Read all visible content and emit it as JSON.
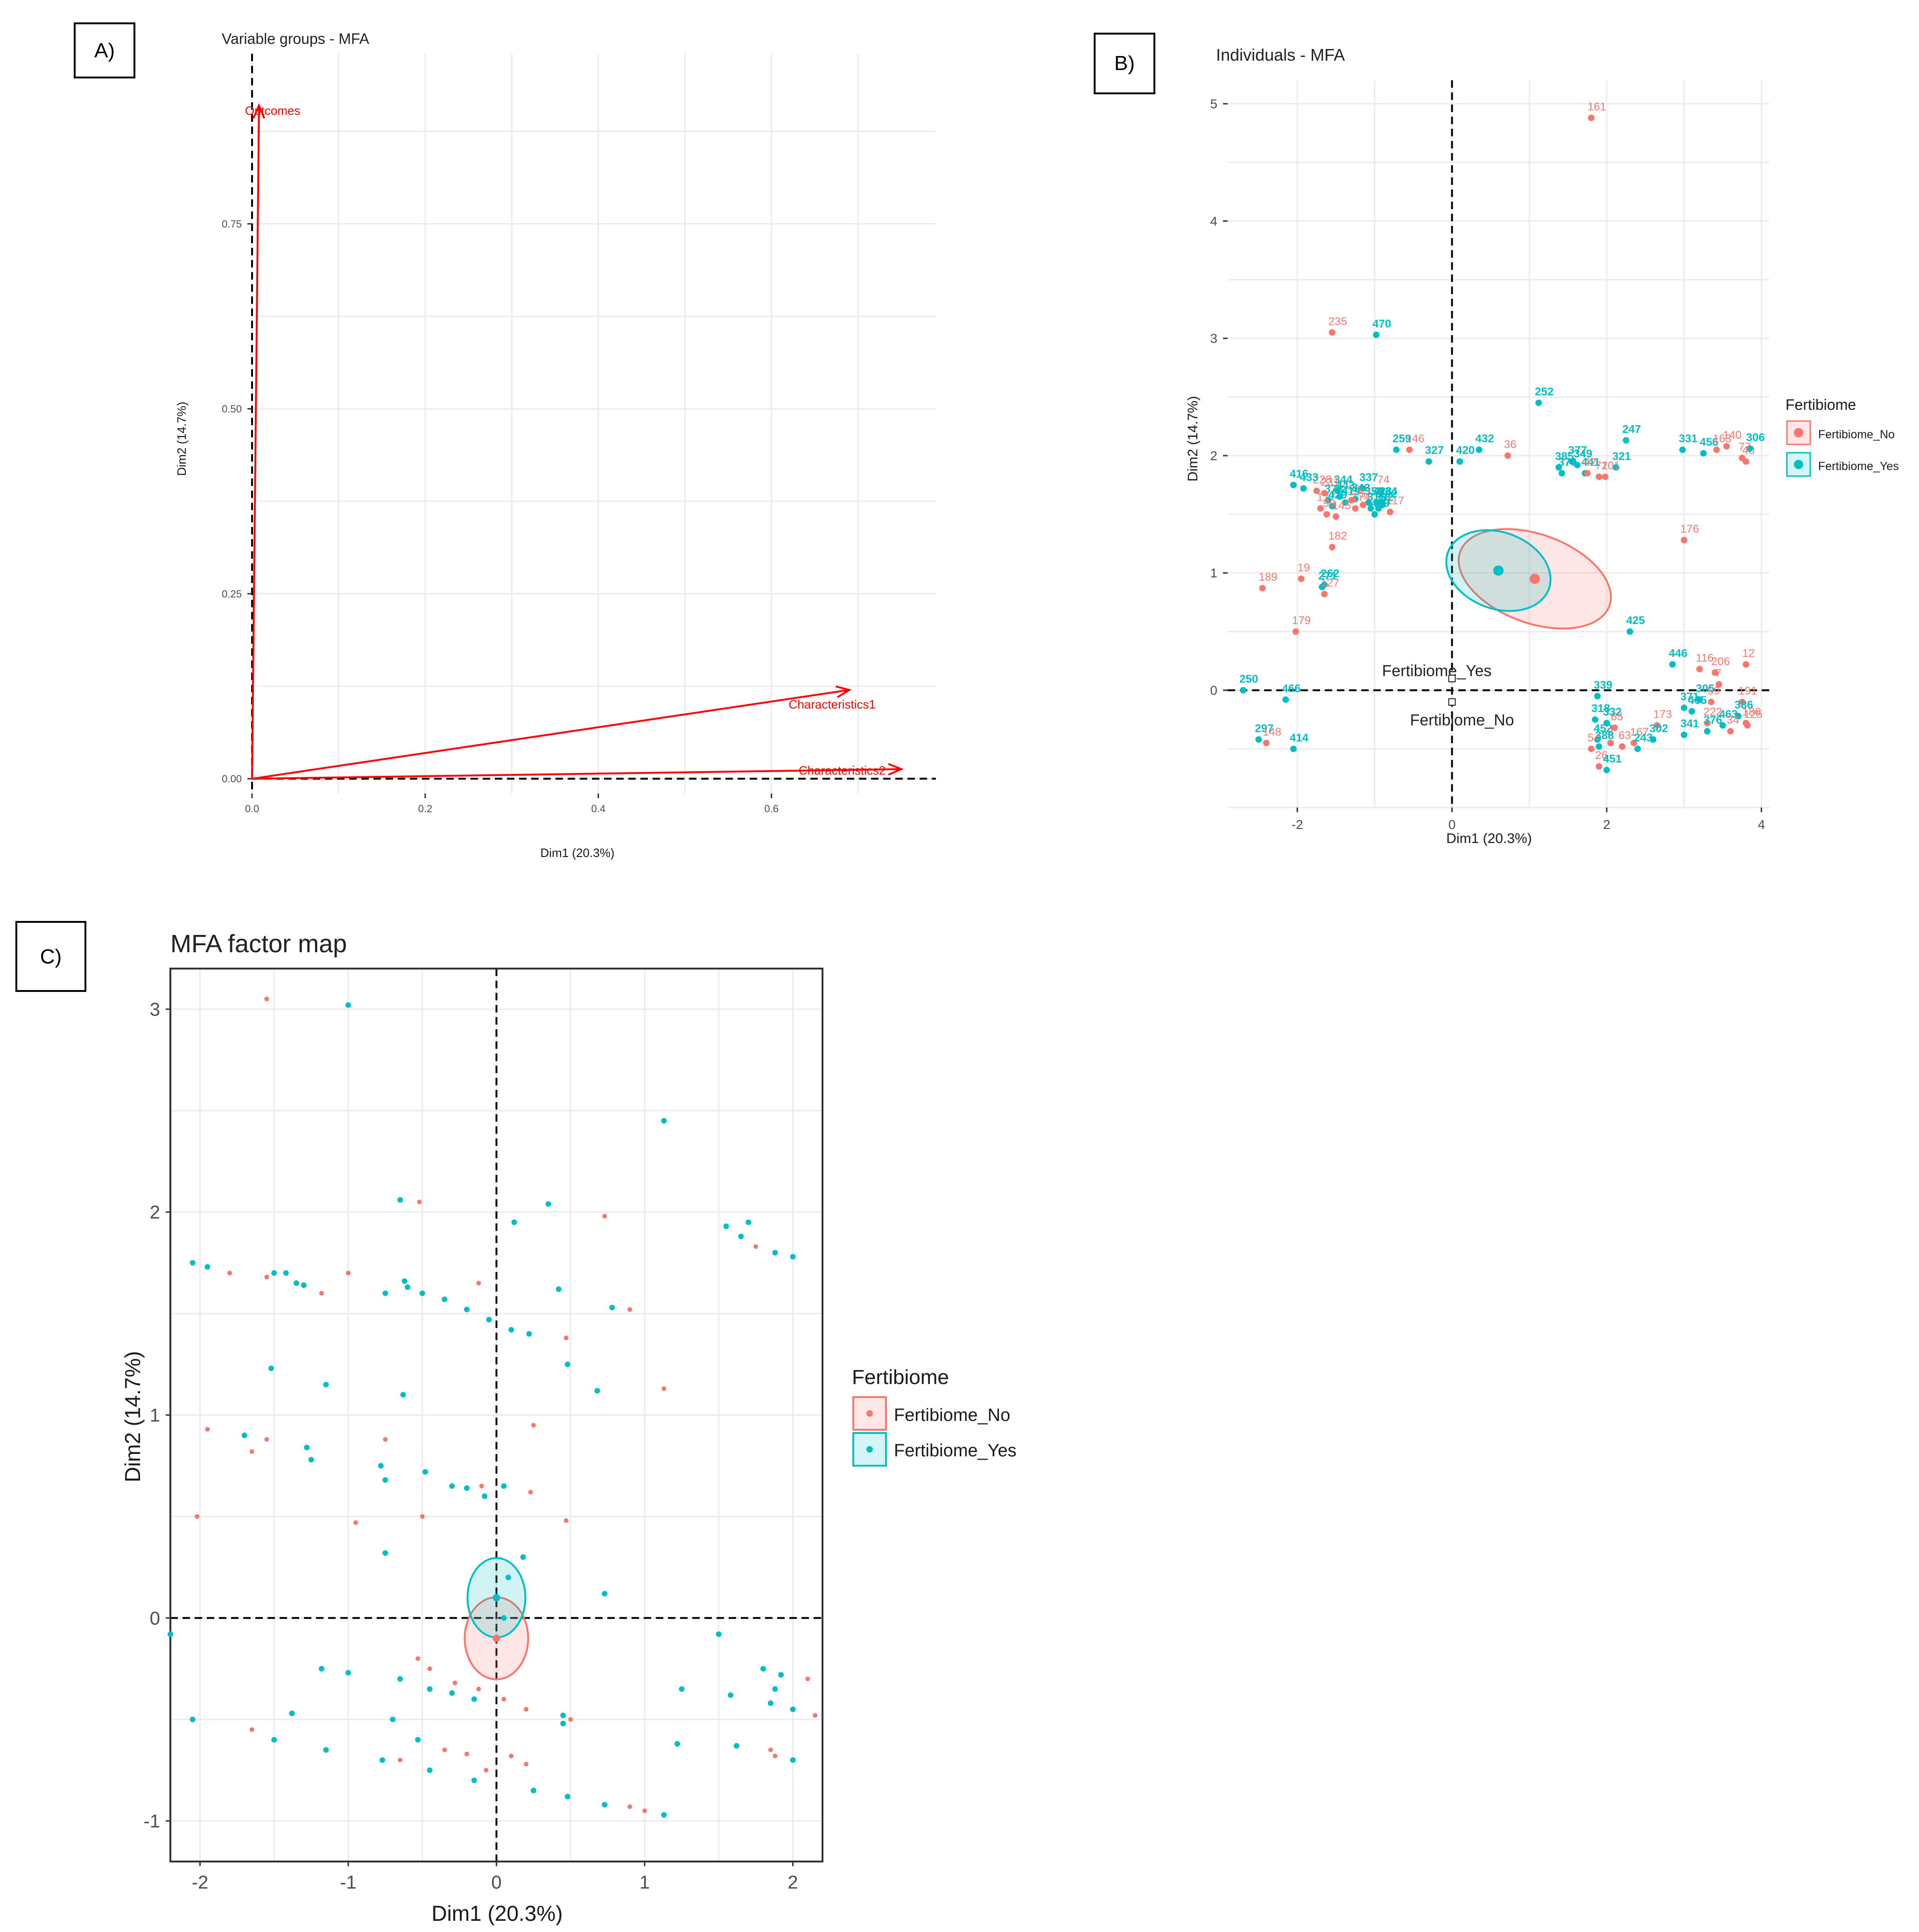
{
  "panels": {
    "a": {
      "label": "A)"
    },
    "b": {
      "label": "B)"
    },
    "c": {
      "label": "C)"
    }
  },
  "colors": {
    "no": "#f8766d",
    "yes": "#00bfc4",
    "arrow": "#ff0000"
  },
  "chart_data": [
    {
      "id": "A",
      "type": "scatter",
      "title": "Variable groups - MFA",
      "xlabel": "Dim1 (20.3%)",
      "ylabel": "Dim2 (14.7%)",
      "xlim": [
        0,
        0.79
      ],
      "ylim": [
        -0.02,
        0.98
      ],
      "xticks": [
        "0.0",
        "0.2",
        "0.4",
        "0.6"
      ],
      "yticks": [
        "0.00",
        "0.25",
        "0.50",
        "0.75"
      ],
      "arrows": [
        {
          "name": "Outcomes",
          "x": 0.008,
          "y": 0.91
        },
        {
          "name": "Characteristics1",
          "x": 0.69,
          "y": 0.12
        },
        {
          "name": "Characteristics2",
          "x": 0.75,
          "y": 0.013
        }
      ]
    },
    {
      "id": "B",
      "type": "scatter",
      "title": "Individuals - MFA",
      "xlabel": "Dim1 (20.3%)",
      "ylabel": "Dim2 (14.7%)",
      "xlim": [
        -2.9,
        4.1
      ],
      "ylim": [
        -1.0,
        5.2
      ],
      "xticks": [
        "-2",
        "0",
        "2",
        "4"
      ],
      "yticks": [
        "0",
        "1",
        "2",
        "3",
        "4",
        "5"
      ],
      "legend": {
        "title": "Fertibiome",
        "entries": [
          "Fertibiome_No",
          "Fertibiome_Yes"
        ]
      },
      "centroid_labels": [
        "Fertibiome_Yes",
        "Fertibiome_No"
      ],
      "centroids": [
        {
          "group": "Yes",
          "x": 0.6,
          "y": 1.02
        },
        {
          "group": "No",
          "x": 1.07,
          "y": 0.95
        }
      ],
      "points": [
        {
          "id": "161",
          "g": "No",
          "x": 1.8,
          "y": 4.88
        },
        {
          "id": "235",
          "g": "No",
          "x": -1.55,
          "y": 3.05
        },
        {
          "id": "470",
          "g": "Yes",
          "x": -0.98,
          "y": 3.03
        },
        {
          "id": "259",
          "g": "Yes",
          "x": -0.72,
          "y": 2.05
        },
        {
          "id": "344",
          "g": "Yes",
          "x": -1.48,
          "y": 1.7
        },
        {
          "id": "337",
          "g": "Yes",
          "x": -1.15,
          "y": 1.72
        },
        {
          "id": "74",
          "g": "No",
          "x": -0.92,
          "y": 1.7
        },
        {
          "id": "146",
          "g": "No",
          "x": -0.55,
          "y": 2.05
        },
        {
          "id": "228",
          "g": "No",
          "x": -1.75,
          "y": 1.7
        },
        {
          "id": "443",
          "g": "Yes",
          "x": -1.45,
          "y": 1.65
        },
        {
          "id": "343",
          "g": "Yes",
          "x": -1.25,
          "y": 1.63
        },
        {
          "id": "378",
          "g": "Yes",
          "x": -1.6,
          "y": 1.62
        },
        {
          "id": "10",
          "g": "No",
          "x": -1.3,
          "y": 1.62
        },
        {
          "id": "350",
          "g": "Yes",
          "x": -1.08,
          "y": 1.6
        },
        {
          "id": "324",
          "g": "Yes",
          "x": -0.9,
          "y": 1.6
        },
        {
          "id": "327",
          "g": "Yes",
          "x": -0.3,
          "y": 1.95
        },
        {
          "id": "432",
          "g": "Yes",
          "x": 0.35,
          "y": 2.05
        },
        {
          "id": "252",
          "g": "Yes",
          "x": 1.12,
          "y": 2.45
        },
        {
          "id": "420",
          "g": "Yes",
          "x": 0.1,
          "y": 1.95
        },
        {
          "id": "36",
          "g": "No",
          "x": 0.72,
          "y": 2.0
        },
        {
          "id": "416",
          "g": "Yes",
          "x": -2.05,
          "y": 1.75
        },
        {
          "id": "433",
          "g": "Yes",
          "x": -1.92,
          "y": 1.72
        },
        {
          "id": "231",
          "g": "No",
          "x": -1.65,
          "y": 1.68
        },
        {
          "id": "419",
          "g": "Yes",
          "x": -1.38,
          "y": 1.6
        },
        {
          "id": "177",
          "g": "No",
          "x": -1.7,
          "y": 1.55
        },
        {
          "id": "429",
          "g": "Yes",
          "x": -1.55,
          "y": 1.57
        },
        {
          "id": "51",
          "g": "No",
          "x": -1.15,
          "y": 1.58
        },
        {
          "id": "423",
          "g": "Yes",
          "x": -0.97,
          "y": 1.6
        },
        {
          "id": "292",
          "g": "Yes",
          "x": -0.9,
          "y": 1.58
        },
        {
          "id": "382",
          "g": "Yes",
          "x": -0.95,
          "y": 1.55
        },
        {
          "id": "174",
          "g": "No",
          "x": -1.25,
          "y": 1.55
        },
        {
          "id": "99",
          "g": "No",
          "x": -1.62,
          "y": 1.5
        },
        {
          "id": "145",
          "g": "No",
          "x": -1.5,
          "y": 1.48
        },
        {
          "id": "315",
          "g": "Yes",
          "x": -1.05,
          "y": 1.55
        },
        {
          "id": "117",
          "g": "No",
          "x": -0.8,
          "y": 1.52
        },
        {
          "id": "409",
          "g": "Yes",
          "x": -1.0,
          "y": 1.5
        },
        {
          "id": "182",
          "g": "No",
          "x": -1.55,
          "y": 1.22
        },
        {
          "id": "19",
          "g": "No",
          "x": -1.95,
          "y": 0.95
        },
        {
          "id": "262",
          "g": "Yes",
          "x": -1.65,
          "y": 0.9
        },
        {
          "id": "271",
          "g": "Yes",
          "x": -1.68,
          "y": 0.88
        },
        {
          "id": "127",
          "g": "No",
          "x": -1.65,
          "y": 0.82
        },
        {
          "id": "189",
          "g": "No",
          "x": -2.45,
          "y": 0.87
        },
        {
          "id": "179",
          "g": "No",
          "x": -2.02,
          "y": 0.5
        },
        {
          "id": "370",
          "g": "Yes",
          "x": 1.42,
          "y": 1.85
        },
        {
          "id": "247",
          "g": "Yes",
          "x": 2.25,
          "y": 2.13
        },
        {
          "id": "321",
          "g": "Yes",
          "x": 2.12,
          "y": 1.9
        },
        {
          "id": "441",
          "g": "Yes",
          "x": 1.72,
          "y": 1.85
        },
        {
          "id": "385",
          "g": "Yes",
          "x": 1.38,
          "y": 1.9
        },
        {
          "id": "201",
          "g": "No",
          "x": 1.98,
          "y": 1.82
        },
        {
          "id": "377",
          "g": "Yes",
          "x": 1.55,
          "y": 1.95
        },
        {
          "id": "349",
          "g": "Yes",
          "x": 1.62,
          "y": 1.92
        },
        {
          "id": "42",
          "g": "No",
          "x": 1.75,
          "y": 1.85
        },
        {
          "id": "71",
          "g": "No",
          "x": 1.9,
          "y": 1.82
        },
        {
          "id": "331",
          "g": "Yes",
          "x": 2.98,
          "y": 2.05
        },
        {
          "id": "456",
          "g": "Yes",
          "x": 3.25,
          "y": 2.02
        },
        {
          "id": "140",
          "g": "No",
          "x": 3.55,
          "y": 2.08
        },
        {
          "id": "163",
          "g": "No",
          "x": 3.42,
          "y": 2.05
        },
        {
          "id": "40",
          "g": "No",
          "x": 3.8,
          "y": 1.95
        },
        {
          "id": "306",
          "g": "Yes",
          "x": 3.85,
          "y": 2.06
        },
        {
          "id": "77",
          "g": "No",
          "x": 3.75,
          "y": 1.98
        },
        {
          "id": "176",
          "g": "No",
          "x": 3.0,
          "y": 1.28
        },
        {
          "id": "425",
          "g": "Yes",
          "x": 2.3,
          "y": 0.5
        },
        {
          "id": "446",
          "g": "Yes",
          "x": 2.85,
          "y": 0.22
        },
        {
          "id": "116",
          "g": "No",
          "x": 3.2,
          "y": 0.18
        },
        {
          "id": "206",
          "g": "No",
          "x": 3.4,
          "y": 0.15
        },
        {
          "id": "12",
          "g": "No",
          "x": 3.8,
          "y": 0.22
        },
        {
          "id": "7",
          "g": "No",
          "x": 3.45,
          "y": 0.05
        },
        {
          "id": "339",
          "g": "Yes",
          "x": 1.88,
          "y": -0.05
        },
        {
          "id": "371",
          "g": "Yes",
          "x": 3.0,
          "y": -0.15
        },
        {
          "id": "305",
          "g": "Yes",
          "x": 3.2,
          "y": -0.08
        },
        {
          "id": "59",
          "g": "No",
          "x": 3.35,
          "y": -0.1
        },
        {
          "id": "465",
          "g": "Yes",
          "x": 3.1,
          "y": -0.18
        },
        {
          "id": "191",
          "g": "No",
          "x": 3.75,
          "y": -0.1
        },
        {
          "id": "318",
          "g": "Yes",
          "x": 1.85,
          "y": -0.25
        },
        {
          "id": "332",
          "g": "Yes",
          "x": 2.0,
          "y": -0.28
        },
        {
          "id": "65",
          "g": "No",
          "x": 2.1,
          "y": -0.32
        },
        {
          "id": "173",
          "g": "No",
          "x": 2.65,
          "y": -0.3
        },
        {
          "id": "222",
          "g": "No",
          "x": 3.3,
          "y": -0.28
        },
        {
          "id": "386",
          "g": "Yes",
          "x": 3.7,
          "y": -0.22
        },
        {
          "id": "452",
          "g": "Yes",
          "x": 1.88,
          "y": -0.42
        },
        {
          "id": "3",
          "g": "No",
          "x": 2.05,
          "y": -0.45
        },
        {
          "id": "54",
          "g": "No",
          "x": 1.8,
          "y": -0.5
        },
        {
          "id": "388",
          "g": "Yes",
          "x": 1.9,
          "y": -0.48
        },
        {
          "id": "167",
          "g": "No",
          "x": 2.35,
          "y": -0.45
        },
        {
          "id": "341",
          "g": "Yes",
          "x": 3.0,
          "y": -0.38
        },
        {
          "id": "463",
          "g": "Yes",
          "x": 3.5,
          "y": -0.3
        },
        {
          "id": "186",
          "g": "No",
          "x": 3.8,
          "y": -0.28
        },
        {
          "id": "63",
          "g": "No",
          "x": 2.2,
          "y": -0.48
        },
        {
          "id": "26",
          "g": "No",
          "x": 1.9,
          "y": -0.65
        },
        {
          "id": "451",
          "g": "Yes",
          "x": 2.0,
          "y": -0.68
        },
        {
          "id": "243",
          "g": "Yes",
          "x": 2.4,
          "y": -0.5
        },
        {
          "id": "302",
          "g": "Yes",
          "x": 2.6,
          "y": -0.42
        },
        {
          "id": "376",
          "g": "Yes",
          "x": 3.3,
          "y": -0.35
        },
        {
          "id": "34",
          "g": "No",
          "x": 3.6,
          "y": -0.35
        },
        {
          "id": "125",
          "g": "No",
          "x": 3.82,
          "y": -0.3
        },
        {
          "id": "250",
          "g": "Yes",
          "x": -2.7,
          "y": 0.0
        },
        {
          "id": "466",
          "g": "Yes",
          "x": -2.15,
          "y": -0.08
        },
        {
          "id": "297",
          "g": "Yes",
          "x": -2.5,
          "y": -0.42
        },
        {
          "id": "148",
          "g": "No",
          "x": -2.4,
          "y": -0.45
        },
        {
          "id": "414",
          "g": "Yes",
          "x": -2.05,
          "y": -0.5
        }
      ]
    },
    {
      "id": "C",
      "type": "scatter",
      "title": "MFA factor map",
      "xlabel": "Dim1 (20.3%)",
      "ylabel": "Dim2 (14.7%)",
      "xlim": [
        -2.2,
        2.2
      ],
      "ylim": [
        -1.2,
        3.2
      ],
      "xticks": [
        "-2",
        "-1",
        "0",
        "1",
        "2"
      ],
      "yticks": [
        "-1",
        "0",
        "1",
        "2",
        "3"
      ],
      "legend": {
        "title": "Fertibiome",
        "entries": [
          "Fertibiome_No",
          "Fertibiome_Yes"
        ]
      },
      "centroids": [
        {
          "group": "Yes",
          "x": 0.0,
          "y": 0.1
        },
        {
          "group": "No",
          "x": 0.0,
          "y": -0.1
        }
      ],
      "points_yes": [
        [
          -1.0,
          3.02
        ],
        [
          1.13,
          2.45
        ],
        [
          -0.65,
          2.06
        ],
        [
          0.35,
          2.04
        ],
        [
          1.55,
          1.93
        ],
        [
          1.65,
          1.88
        ],
        [
          1.7,
          1.95
        ],
        [
          1.88,
          1.8
        ],
        [
          2.0,
          1.78
        ],
        [
          -2.05,
          1.75
        ],
        [
          -1.95,
          1.73
        ],
        [
          -1.5,
          1.7
        ],
        [
          -1.42,
          1.7
        ],
        [
          -1.35,
          1.65
        ],
        [
          -1.3,
          1.64
        ],
        [
          -0.75,
          1.6
        ],
        [
          -0.62,
          1.66
        ],
        [
          -0.6,
          1.63
        ],
        [
          -0.5,
          1.6
        ],
        [
          -0.35,
          1.57
        ],
        [
          -0.2,
          1.52
        ],
        [
          -0.05,
          1.47
        ],
        [
          0.1,
          1.42
        ],
        [
          0.22,
          1.4
        ],
        [
          0.12,
          1.95
        ],
        [
          0.42,
          1.62
        ],
        [
          0.78,
          1.53
        ],
        [
          -1.52,
          1.23
        ],
        [
          -1.15,
          1.15
        ],
        [
          -0.63,
          1.1
        ],
        [
          0.48,
          1.25
        ],
        [
          0.68,
          1.12
        ],
        [
          -1.7,
          0.9
        ],
        [
          -1.28,
          0.84
        ],
        [
          -1.25,
          0.78
        ],
        [
          -0.78,
          0.75
        ],
        [
          -0.75,
          0.68
        ],
        [
          -0.48,
          0.72
        ],
        [
          -0.3,
          0.65
        ],
        [
          -0.2,
          0.64
        ],
        [
          0.05,
          0.65
        ],
        [
          -0.08,
          0.6
        ],
        [
          0.18,
          0.3
        ],
        [
          0.08,
          0.2
        ],
        [
          -0.75,
          0.32
        ],
        [
          0.05,
          0.0
        ],
        [
          0.73,
          0.12
        ],
        [
          -2.2,
          -0.08
        ],
        [
          1.5,
          -0.08
        ],
        [
          1.8,
          -0.25
        ],
        [
          1.92,
          -0.28
        ],
        [
          1.88,
          -0.35
        ],
        [
          1.25,
          -0.35
        ],
        [
          2.0,
          -0.45
        ],
        [
          1.58,
          -0.38
        ],
        [
          1.85,
          -0.42
        ],
        [
          -1.18,
          -0.25
        ],
        [
          -1.0,
          -0.27
        ],
        [
          -0.65,
          -0.3
        ],
        [
          -0.45,
          -0.35
        ],
        [
          -0.3,
          -0.37
        ],
        [
          -0.15,
          -0.4
        ],
        [
          0.45,
          -0.48
        ],
        [
          0.45,
          -0.52
        ],
        [
          -2.05,
          -0.5
        ],
        [
          -1.38,
          -0.47
        ],
        [
          -0.7,
          -0.5
        ],
        [
          -0.53,
          -0.6
        ],
        [
          -1.5,
          -0.6
        ],
        [
          -1.15,
          -0.65
        ],
        [
          -0.77,
          -0.7
        ],
        [
          -0.45,
          -0.75
        ],
        [
          -0.15,
          -0.8
        ],
        [
          0.25,
          -0.85
        ],
        [
          0.48,
          -0.88
        ],
        [
          0.73,
          -0.92
        ],
        [
          1.13,
          -0.97
        ],
        [
          1.22,
          -0.62
        ],
        [
          1.62,
          -0.63
        ],
        [
          2.0,
          -0.7
        ]
      ],
      "points_no": [
        [
          -1.55,
          3.05
        ],
        [
          -0.52,
          2.05
        ],
        [
          0.73,
          1.98
        ],
        [
          1.75,
          1.83
        ],
        [
          -1.8,
          1.7
        ],
        [
          -1.55,
          1.68
        ],
        [
          -1.0,
          1.7
        ],
        [
          -1.18,
          1.6
        ],
        [
          -0.12,
          1.65
        ],
        [
          0.47,
          1.38
        ],
        [
          0.9,
          1.52
        ],
        [
          1.13,
          1.13
        ],
        [
          0.25,
          0.95
        ],
        [
          -1.95,
          0.93
        ],
        [
          -1.65,
          0.82
        ],
        [
          -1.55,
          0.88
        ],
        [
          -0.75,
          0.88
        ],
        [
          -0.78,
          0.75
        ],
        [
          -0.5,
          0.5
        ],
        [
          0.23,
          0.62
        ],
        [
          -0.1,
          0.65
        ],
        [
          -2.02,
          0.5
        ],
        [
          -0.95,
          0.47
        ],
        [
          0.47,
          0.48
        ],
        [
          -0.53,
          -0.2
        ],
        [
          -0.45,
          -0.25
        ],
        [
          -0.28,
          -0.32
        ],
        [
          -0.12,
          -0.35
        ],
        [
          0.05,
          -0.4
        ],
        [
          0.2,
          -0.45
        ],
        [
          0.5,
          -0.5
        ],
        [
          2.1,
          -0.3
        ],
        [
          2.0,
          -0.45
        ],
        [
          2.15,
          -0.48
        ],
        [
          1.85,
          -0.65
        ],
        [
          1.88,
          -0.68
        ],
        [
          -1.65,
          -0.55
        ],
        [
          -0.65,
          -0.7
        ],
        [
          -0.35,
          -0.65
        ],
        [
          -0.2,
          -0.67
        ],
        [
          0.1,
          -0.68
        ],
        [
          0.2,
          -0.72
        ],
        [
          0.9,
          -0.93
        ],
        [
          1.0,
          -0.95
        ],
        [
          -0.07,
          -0.75
        ]
      ]
    }
  ]
}
